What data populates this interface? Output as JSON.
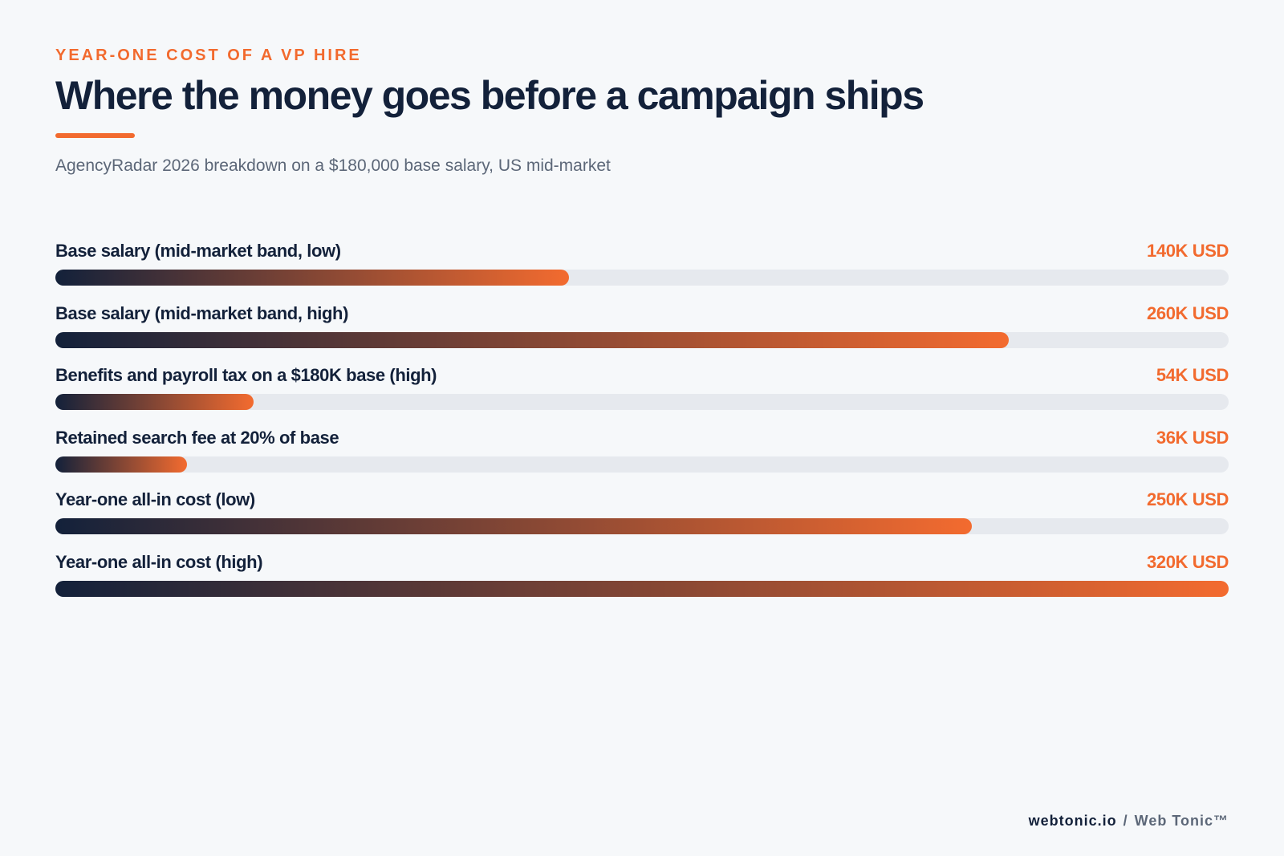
{
  "eyebrow": "YEAR-ONE COST OF A VP HIRE",
  "title": "Where the money goes before a campaign ships",
  "subtitle": "AgencyRadar 2026 breakdown on a $180,000 base salary, US mid-market",
  "colors": {
    "accent": "#f26a2e",
    "ink": "#13213a",
    "track": "#e6e9ee",
    "gradient_start": "#13213a",
    "gradient_end": "#f36b2f"
  },
  "chart_data": {
    "type": "bar",
    "orientation": "horizontal",
    "unit": "K USD",
    "xlim": [
      0,
      320
    ],
    "grid": false,
    "categories": [
      "Base salary (mid-market band, low)",
      "Base salary (mid-market band, high)",
      "Benefits and payroll tax on a $180K base (high)",
      "Retained search fee at 20% of base",
      "Year-one all-in cost (low)",
      "Year-one all-in cost (high)"
    ],
    "values": [
      140,
      260,
      54,
      36,
      250,
      320
    ],
    "value_labels": [
      "140K USD",
      "260K USD",
      "54K USD",
      "36K USD",
      "250K USD",
      "320K USD"
    ]
  },
  "footer": {
    "site": "webtonic.io",
    "separator": "/",
    "brand": "Web Tonic™"
  }
}
